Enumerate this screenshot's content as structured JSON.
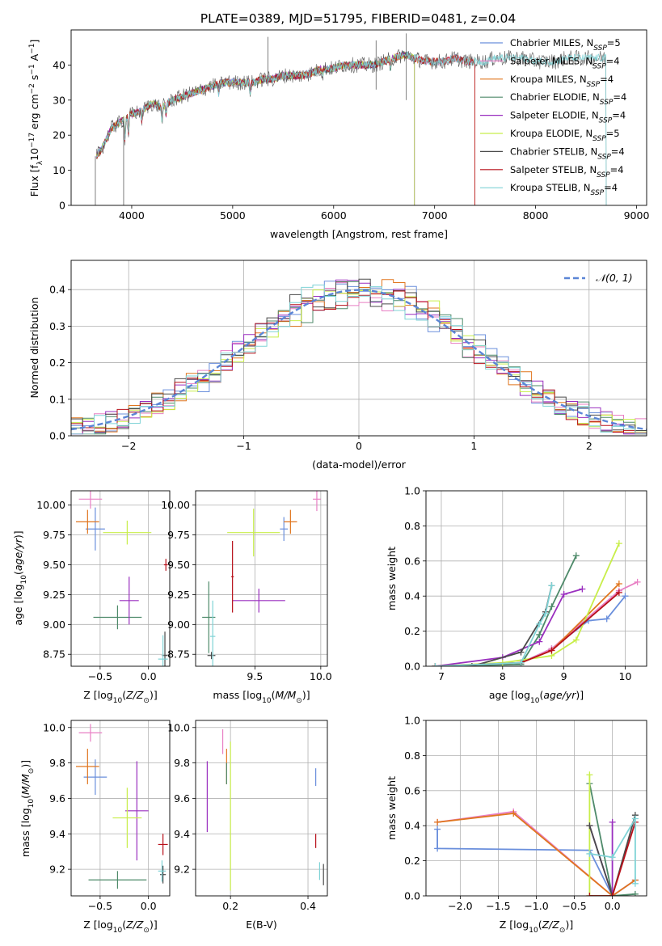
{
  "figure_title": "PLATE=0389, MJD=51795, FIBERID=0481, z=0.04",
  "colors": [
    "#6a8fdc",
    "#e87fc4",
    "#e0761f",
    "#4e8a6a",
    "#9a2fbf",
    "#c8ee4a",
    "#4a4a4a",
    "#b8101a",
    "#7fd3d6"
  ],
  "chart_data": [
    {
      "id": "spectrum",
      "type": "line",
      "xlabel": "wavelength [Angstrom, rest frame]",
      "ylabel": "Flux [f_λ 10^-17 erg cm^-2 s^-1 A^-1]",
      "xlim": [
        3400,
        9100
      ],
      "ylim": [
        0,
        50
      ],
      "xticks": [
        4000,
        5000,
        6000,
        7000,
        8000,
        9000
      ],
      "yticks": [
        0,
        10,
        20,
        30,
        40
      ],
      "legend_position": "top-right",
      "continuum": [
        [
          3650,
          14
        ],
        [
          3700,
          16
        ],
        [
          3800,
          22
        ],
        [
          3900,
          24
        ],
        [
          4000,
          26
        ],
        [
          4100,
          27
        ],
        [
          4200,
          29
        ],
        [
          4300,
          28
        ],
        [
          4400,
          30
        ],
        [
          4500,
          31
        ],
        [
          4600,
          32
        ],
        [
          4700,
          33
        ],
        [
          4800,
          34
        ],
        [
          4900,
          35
        ],
        [
          5000,
          35
        ],
        [
          5100,
          35
        ],
        [
          5200,
          35
        ],
        [
          5300,
          36
        ],
        [
          5400,
          36
        ],
        [
          5500,
          37
        ],
        [
          5600,
          37
        ],
        [
          5700,
          37
        ],
        [
          5800,
          38
        ],
        [
          5900,
          39
        ],
        [
          6000,
          39
        ],
        [
          6100,
          40
        ],
        [
          6200,
          40
        ],
        [
          6300,
          40
        ],
        [
          6400,
          40
        ],
        [
          6500,
          41
        ],
        [
          6600,
          42
        ],
        [
          6700,
          43
        ],
        [
          6800,
          42
        ],
        [
          6900,
          41
        ],
        [
          7000,
          41
        ],
        [
          7100,
          41
        ],
        [
          7200,
          42
        ],
        [
          7300,
          41
        ],
        [
          7400,
          41
        ],
        [
          7500,
          41
        ],
        [
          7600,
          42
        ],
        [
          7700,
          42
        ],
        [
          7800,
          42
        ],
        [
          7900,
          42
        ],
        [
          8000,
          41
        ],
        [
          8100,
          41
        ],
        [
          8200,
          41
        ],
        [
          8300,
          42
        ],
        [
          8400,
          42
        ],
        [
          8500,
          42
        ],
        [
          8600,
          42
        ],
        [
          8700,
          42
        ]
      ],
      "series": [
        {
          "name": "Chabrier MILES",
          "nssp": "5",
          "end": 7400
        },
        {
          "name": "Salpeter MILES",
          "nssp": "4",
          "end": 7400
        },
        {
          "name": "Kroupa MILES",
          "nssp": "4",
          "end": 7400
        },
        {
          "name": "Chabrier ELODIE",
          "nssp": "4",
          "end": 6800
        },
        {
          "name": "Salpeter ELODIE",
          "nssp": "4",
          "end": 6800
        },
        {
          "name": "Kroupa ELODIE",
          "nssp": "5",
          "end": 6800
        },
        {
          "name": "Chabrier STELIB",
          "nssp": "4",
          "end": 8700
        },
        {
          "name": "Salpeter STELIB",
          "nssp": "4",
          "end": 7400
        },
        {
          "name": "Kroupa STELIB",
          "nssp": "4",
          "end": 8700
        }
      ]
    },
    {
      "id": "residuals",
      "type": "line",
      "xlabel": "(data-model)/error",
      "ylabel": "Normed distribution",
      "xlim": [
        -2.5,
        2.5
      ],
      "ylim": [
        0,
        0.48
      ],
      "xticks": [
        -2,
        -1,
        0,
        1,
        2
      ],
      "yticks": [
        0.0,
        0.1,
        0.2,
        0.3,
        0.4
      ],
      "grid": true,
      "legend_position": "top-right",
      "legend": "𝒩(0, 1)"
    },
    {
      "id": "age_vs_Z",
      "type": "scatter",
      "xlabel": "Z [log10(Z/Z⊙)]",
      "ylabel": "age  [log10(age/yr)]",
      "xlim": [
        -0.8,
        0.22
      ],
      "ylim": [
        8.65,
        10.12
      ],
      "xticks": [
        -0.5,
        0.0
      ],
      "yticks": [
        8.75,
        9.0,
        9.25,
        9.5,
        9.75,
        10.0
      ],
      "grid": true,
      "points": [
        {
          "x": -0.55,
          "y": 9.8,
          "xerr": 0.1,
          "yerr": 0.18,
          "c": 0
        },
        {
          "x": -0.6,
          "y": 10.05,
          "xerr": 0.12,
          "yerr": 0.08,
          "c": 1
        },
        {
          "x": -0.63,
          "y": 9.86,
          "xerr": 0.12,
          "yerr": 0.1,
          "c": 2
        },
        {
          "x": -0.32,
          "y": 9.06,
          "xerr": 0.25,
          "yerr": 0.1,
          "c": 3
        },
        {
          "x": -0.2,
          "y": 9.2,
          "xerr": 0.1,
          "yerr": 0.2,
          "c": 4
        },
        {
          "x": -0.22,
          "y": 9.77,
          "xerr": 0.25,
          "yerr": 0.1,
          "c": 5
        },
        {
          "x": 0.17,
          "y": 8.74,
          "xerr": 0.03,
          "yerr": 0.2,
          "c": 6
        },
        {
          "x": 0.18,
          "y": 9.5,
          "xerr": 0.02,
          "yerr": 0.05,
          "c": 7
        },
        {
          "x": 0.15,
          "y": 8.71,
          "xerr": 0.05,
          "yerr": 0.2,
          "c": 8
        }
      ]
    },
    {
      "id": "age_vs_mass",
      "type": "scatter",
      "xlabel": "mass [log10(M/M⊙)]",
      "ylabel": "",
      "xlim": [
        9.05,
        10.05
      ],
      "ylim": [
        8.65,
        10.12
      ],
      "xticks": [
        9.5,
        10.0
      ],
      "yticks": [
        8.75,
        9.0,
        9.25,
        9.5,
        9.75,
        10.0
      ],
      "grid": true,
      "points": [
        {
          "x": 9.72,
          "y": 9.8,
          "xerr": 0.03,
          "yerr": 0.1,
          "c": 0
        },
        {
          "x": 9.97,
          "y": 10.05,
          "xerr": 0.03,
          "yerr": 0.1,
          "c": 1
        },
        {
          "x": 9.77,
          "y": 9.86,
          "xerr": 0.05,
          "yerr": 0.1,
          "c": 2
        },
        {
          "x": 9.15,
          "y": 9.06,
          "xerr": 0.05,
          "yerr": 0.3,
          "c": 3
        },
        {
          "x": 9.53,
          "y": 9.2,
          "xerr": 0.2,
          "yerr": 0.1,
          "c": 4
        },
        {
          "x": 9.49,
          "y": 9.77,
          "xerr": 0.2,
          "yerr": 0.2,
          "c": 5
        },
        {
          "x": 9.17,
          "y": 8.74,
          "xerr": 0.03,
          "yerr": 0.03,
          "c": 6
        },
        {
          "x": 9.33,
          "y": 9.4,
          "xerr": 0.01,
          "yerr": 0.3,
          "c": 7
        },
        {
          "x": 9.18,
          "y": 8.9,
          "xerr": 0.02,
          "yerr": 0.3,
          "c": 8
        }
      ]
    },
    {
      "id": "massweight_vs_age",
      "type": "line",
      "xlabel": "age  [log10(age/yr)]",
      "ylabel": "mass weight",
      "xlim": [
        6.75,
        10.35
      ],
      "ylim": [
        0,
        1.0
      ],
      "xticks": [
        7,
        8,
        9,
        10
      ],
      "yticks": [
        0.0,
        0.2,
        0.4,
        0.6,
        0.8,
        1.0
      ],
      "grid": true,
      "series": [
        {
          "c": 0,
          "x": [
            6.9,
            8.3,
            8.8,
            9.4,
            9.7,
            10.0
          ],
          "y": [
            0.0,
            0.02,
            0.1,
            0.26,
            0.27,
            0.4
          ]
        },
        {
          "c": 1,
          "x": [
            6.9,
            8.3,
            8.8,
            9.9,
            10.2
          ],
          "y": [
            0.0,
            0.02,
            0.1,
            0.43,
            0.48
          ]
        },
        {
          "c": 2,
          "x": [
            6.9,
            8.3,
            8.8,
            9.9
          ],
          "y": [
            0.0,
            0.02,
            0.09,
            0.47
          ]
        },
        {
          "c": 3,
          "x": [
            6.9,
            8.3,
            8.6,
            8.8,
            9.2
          ],
          "y": [
            0.0,
            0.01,
            0.18,
            0.34,
            0.63
          ]
        },
        {
          "c": 4,
          "x": [
            6.9,
            8.0,
            8.6,
            9.0,
            9.3
          ],
          "y": [
            0.0,
            0.05,
            0.14,
            0.41,
            0.44
          ]
        },
        {
          "c": 5,
          "x": [
            6.9,
            8.0,
            8.8,
            9.2,
            9.9
          ],
          "y": [
            0.0,
            0.02,
            0.06,
            0.15,
            0.7
          ]
        },
        {
          "c": 6,
          "x": [
            7.5,
            8.3,
            8.7,
            8.8
          ],
          "y": [
            0.0,
            0.08,
            0.31,
            0.46
          ]
        },
        {
          "c": 7,
          "x": [
            6.9,
            8.3,
            8.8,
            9.9
          ],
          "y": [
            0.0,
            0.02,
            0.09,
            0.42
          ]
        },
        {
          "c": 8,
          "x": [
            6.9,
            8.3,
            8.6,
            8.7,
            8.8
          ],
          "y": [
            0.0,
            0.02,
            0.24,
            0.3,
            0.46
          ]
        }
      ]
    },
    {
      "id": "mass_vs_Z",
      "type": "scatter",
      "xlabel": "Z [log10(Z/Z⊙)]",
      "ylabel": "mass [log10(M/M⊙)]",
      "xlim": [
        -0.8,
        0.22
      ],
      "ylim": [
        9.05,
        10.04
      ],
      "xticks": [
        -0.5,
        0.0
      ],
      "yticks": [
        9.2,
        9.4,
        9.6,
        9.8,
        10.0
      ],
      "grid": true,
      "points": [
        {
          "x": -0.55,
          "y": 9.72,
          "xerr": 0.12,
          "yerr": 0.1,
          "c": 0
        },
        {
          "x": -0.6,
          "y": 9.97,
          "xerr": 0.12,
          "yerr": 0.05,
          "c": 1
        },
        {
          "x": -0.63,
          "y": 9.78,
          "xerr": 0.12,
          "yerr": 0.1,
          "c": 2
        },
        {
          "x": -0.32,
          "y": 9.14,
          "xerr": 0.3,
          "yerr": 0.05,
          "c": 3
        },
        {
          "x": -0.12,
          "y": 9.53,
          "xerr": 0.12,
          "yerr": 0.28,
          "c": 4
        },
        {
          "x": -0.22,
          "y": 9.49,
          "xerr": 0.15,
          "yerr": 0.17,
          "c": 5
        },
        {
          "x": 0.15,
          "y": 9.17,
          "xerr": 0.03,
          "yerr": 0.05,
          "c": 6
        },
        {
          "x": 0.15,
          "y": 9.34,
          "xerr": 0.05,
          "yerr": 0.06,
          "c": 7
        },
        {
          "x": 0.14,
          "y": 9.19,
          "xerr": 0.04,
          "yerr": 0.06,
          "c": 8
        }
      ]
    },
    {
      "id": "mass_vs_ebv",
      "type": "scatter",
      "xlabel": "E(B-V)",
      "ylabel": "",
      "xlim": [
        0.11,
        0.45
      ],
      "ylim": [
        9.05,
        10.04
      ],
      "xticks": [
        0.2,
        0.4
      ],
      "yticks": [
        9.2,
        9.4,
        9.6,
        9.8,
        10.0
      ],
      "grid": true,
      "points": [
        {
          "x": 0.42,
          "y": 9.72,
          "xerr": 0.0,
          "yerr": 0.05,
          "c": 0
        },
        {
          "x": 0.18,
          "y": 9.92,
          "xerr": 0.0,
          "yerr": 0.07,
          "c": 1
        },
        {
          "x": 0.19,
          "y": 9.78,
          "xerr": 0.0,
          "yerr": 0.1,
          "c": 2
        },
        {
          "x": 0.19,
          "y": 9.74,
          "xerr": 0.0,
          "yerr": 0.06,
          "c": 3
        },
        {
          "x": 0.14,
          "y": 9.61,
          "xerr": 0.0,
          "yerr": 0.2,
          "c": 4
        },
        {
          "x": 0.2,
          "y": 9.5,
          "xerr": 0.0,
          "yerr": 0.42,
          "c": 5
        },
        {
          "x": 0.44,
          "y": 9.17,
          "xerr": 0.0,
          "yerr": 0.06,
          "c": 6
        },
        {
          "x": 0.42,
          "y": 9.36,
          "xerr": 0.0,
          "yerr": 0.04,
          "c": 7
        },
        {
          "x": 0.43,
          "y": 9.19,
          "xerr": 0.0,
          "yerr": 0.05,
          "c": 8
        }
      ]
    },
    {
      "id": "massweight_vs_Z",
      "type": "line",
      "xlabel": "Z [log10(Z/Z⊙)]",
      "ylabel": "mass weight",
      "xlim": [
        -2.45,
        0.45
      ],
      "ylim": [
        0,
        1.0
      ],
      "xticks": [
        -2.0,
        -1.5,
        -1.0,
        -0.5,
        0.0
      ],
      "yticks": [
        0.0,
        0.2,
        0.4,
        0.6,
        0.8,
        1.0
      ],
      "grid": true,
      "series": [
        {
          "c": 0,
          "x": [
            -2.3,
            -2.3,
            -0.3,
            0.0,
            0.3
          ],
          "y": [
            0.38,
            0.27,
            0.26,
            0.0,
            0.09
          ]
        },
        {
          "c": 1,
          "x": [
            -2.3,
            -1.3,
            0.0,
            0.3
          ],
          "y": [
            0.42,
            0.48,
            0.0,
            0.09
          ]
        },
        {
          "c": 2,
          "x": [
            -2.3,
            -1.3,
            0.0,
            0.3
          ],
          "y": [
            0.42,
            0.47,
            0.0,
            0.09
          ]
        },
        {
          "c": 3,
          "x": [
            -0.3,
            0.0,
            0.3
          ],
          "y": [
            0.64,
            0.0,
            0.01
          ]
        },
        {
          "c": 4,
          "x": [
            -0.3,
            0.0,
            0.0
          ],
          "y": [
            0.4,
            0.0,
            0.42
          ]
        },
        {
          "c": 5,
          "x": [
            -0.3,
            -0.3,
            0.0
          ],
          "y": [
            0.69,
            0.0,
            0.0
          ]
        },
        {
          "c": 6,
          "x": [
            -0.3,
            0.0,
            0.3
          ],
          "y": [
            0.4,
            0.0,
            0.46
          ]
        },
        {
          "c": 7,
          "x": [
            -0.3,
            0.0,
            0.3
          ],
          "y": [
            0.0,
            0.0,
            0.42
          ]
        },
        {
          "c": 8,
          "x": [
            -0.3,
            0.0,
            0.3,
            0.3
          ],
          "y": [
            0.24,
            0.22,
            0.44,
            0.07
          ]
        }
      ]
    }
  ]
}
